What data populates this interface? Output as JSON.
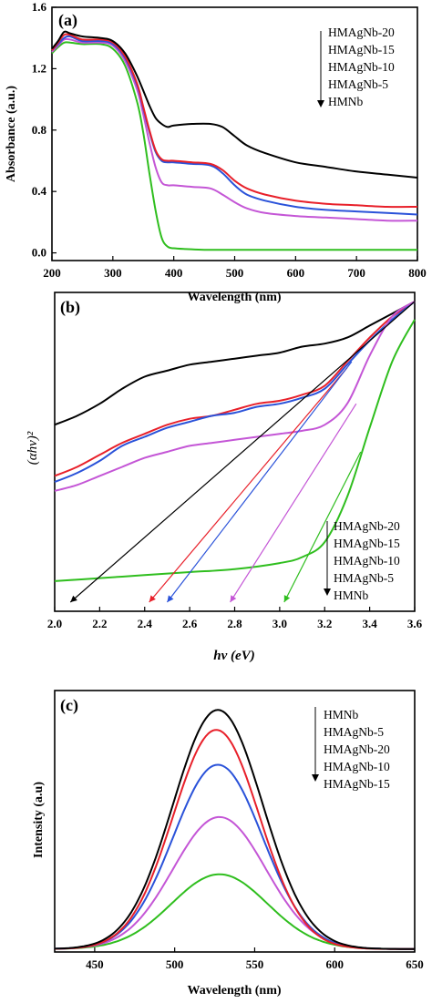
{
  "colors": {
    "HMAgNb-20": "#000000",
    "HMAgNb-15": "#e8202a",
    "HMAgNb-10": "#2a52d9",
    "HMAgNb-5": "#c456d6",
    "HMNb": "#2fbe1e"
  },
  "chart_data": [
    {
      "panel": "(a)",
      "type": "line",
      "xlabel": "Wavelength (nm)",
      "ylabel": "Absorbance (a.u.)",
      "xlim": [
        200,
        800
      ],
      "ylim": [
        -0.05,
        1.6
      ],
      "xticks": [
        200,
        300,
        400,
        500,
        600,
        700,
        800
      ],
      "yticks": [
        0.0,
        0.4,
        0.8,
        1.2,
        1.6
      ],
      "legend": [
        "HMAgNb-20",
        "HMAgNb-15",
        "HMAgNb-10",
        "HMAgNb-5",
        "HMNb"
      ],
      "series": [
        {
          "name": "HMAgNb-20",
          "x": [
            200,
            210,
            220,
            230,
            250,
            280,
            300,
            320,
            340,
            360,
            370,
            380,
            390,
            400,
            430,
            460,
            480,
            500,
            520,
            550,
            600,
            650,
            700,
            750,
            800
          ],
          "y": [
            1.33,
            1.38,
            1.44,
            1.43,
            1.41,
            1.4,
            1.38,
            1.3,
            1.15,
            0.96,
            0.88,
            0.84,
            0.82,
            0.83,
            0.84,
            0.84,
            0.82,
            0.76,
            0.7,
            0.65,
            0.59,
            0.56,
            0.53,
            0.51,
            0.49
          ]
        },
        {
          "name": "HMAgNb-15",
          "x": [
            200,
            210,
            220,
            230,
            250,
            280,
            300,
            320,
            340,
            350,
            360,
            370,
            380,
            390,
            400,
            430,
            460,
            480,
            500,
            520,
            550,
            600,
            650,
            700,
            750,
            800
          ],
          "y": [
            1.32,
            1.37,
            1.42,
            1.42,
            1.39,
            1.39,
            1.37,
            1.28,
            1.1,
            0.95,
            0.8,
            0.67,
            0.61,
            0.6,
            0.6,
            0.59,
            0.58,
            0.54,
            0.47,
            0.42,
            0.38,
            0.34,
            0.32,
            0.31,
            0.3,
            0.3
          ]
        },
        {
          "name": "HMAgNb-10",
          "x": [
            200,
            210,
            220,
            230,
            250,
            280,
            300,
            320,
            340,
            350,
            360,
            370,
            380,
            390,
            400,
            430,
            460,
            480,
            500,
            520,
            550,
            600,
            650,
            700,
            750,
            800
          ],
          "y": [
            1.32,
            1.36,
            1.4,
            1.41,
            1.38,
            1.38,
            1.36,
            1.27,
            1.09,
            0.94,
            0.79,
            0.66,
            0.6,
            0.59,
            0.59,
            0.58,
            0.57,
            0.52,
            0.44,
            0.38,
            0.34,
            0.3,
            0.28,
            0.27,
            0.26,
            0.25
          ]
        },
        {
          "name": "HMAgNb-5",
          "x": [
            200,
            210,
            220,
            230,
            250,
            280,
            300,
            320,
            340,
            350,
            360,
            370,
            380,
            390,
            400,
            430,
            460,
            480,
            500,
            520,
            550,
            600,
            650,
            700,
            750,
            800
          ],
          "y": [
            1.31,
            1.35,
            1.39,
            1.39,
            1.37,
            1.37,
            1.35,
            1.25,
            1.06,
            0.9,
            0.72,
            0.56,
            0.46,
            0.44,
            0.44,
            0.43,
            0.42,
            0.38,
            0.33,
            0.29,
            0.26,
            0.24,
            0.23,
            0.22,
            0.21,
            0.21
          ]
        },
        {
          "name": "HMNb",
          "x": [
            200,
            210,
            220,
            230,
            250,
            280,
            300,
            320,
            340,
            350,
            360,
            370,
            380,
            390,
            400,
            420,
            450,
            500,
            600,
            700,
            800
          ],
          "y": [
            1.3,
            1.34,
            1.37,
            1.37,
            1.36,
            1.36,
            1.33,
            1.22,
            0.98,
            0.78,
            0.52,
            0.28,
            0.1,
            0.04,
            0.03,
            0.025,
            0.02,
            0.02,
            0.02,
            0.02,
            0.02
          ]
        }
      ]
    },
    {
      "panel": "(b)",
      "type": "line",
      "xlabel": "hν (eV)",
      "ylabel": "(αhν)²",
      "xlim": [
        2.0,
        3.6
      ],
      "ylim": [
        0,
        1
      ],
      "xticks": [
        "2.0",
        "2.2",
        "2.4",
        "2.6",
        "2.8",
        "3.0",
        "3.2",
        "3.4",
        "3.6"
      ],
      "legend": [
        "HMAgNb-20",
        "HMAgNb-15",
        "HMAgNb-10",
        "HMAgNb-5",
        "HMNb"
      ],
      "series": [
        {
          "name": "HMAgNb-20",
          "x": [
            2.0,
            2.1,
            2.2,
            2.3,
            2.4,
            2.5,
            2.6,
            2.7,
            2.8,
            2.9,
            3.0,
            3.1,
            3.2,
            3.3,
            3.4,
            3.5,
            3.6
          ],
          "y": [
            0.59,
            0.62,
            0.66,
            0.71,
            0.75,
            0.77,
            0.79,
            0.8,
            0.81,
            0.82,
            0.83,
            0.85,
            0.86,
            0.88,
            0.92,
            0.96,
            1.0
          ]
        },
        {
          "name": "HMAgNb-15",
          "x": [
            2.0,
            2.1,
            2.2,
            2.3,
            2.4,
            2.5,
            2.6,
            2.7,
            2.8,
            2.9,
            3.0,
            3.1,
            3.2,
            3.3,
            3.4,
            3.5,
            3.6
          ],
          "y": [
            0.42,
            0.45,
            0.49,
            0.53,
            0.56,
            0.59,
            0.61,
            0.62,
            0.64,
            0.66,
            0.67,
            0.69,
            0.72,
            0.8,
            0.88,
            0.95,
            1.0
          ]
        },
        {
          "name": "HMAgNb-10",
          "x": [
            2.0,
            2.1,
            2.2,
            2.3,
            2.4,
            2.5,
            2.6,
            2.7,
            2.8,
            2.9,
            3.0,
            3.1,
            3.2,
            3.3,
            3.4,
            3.5,
            3.6
          ],
          "y": [
            0.4,
            0.43,
            0.47,
            0.52,
            0.55,
            0.58,
            0.6,
            0.62,
            0.63,
            0.65,
            0.66,
            0.68,
            0.71,
            0.79,
            0.87,
            0.94,
            1.0
          ]
        },
        {
          "name": "HMAgNb-5",
          "x": [
            2.0,
            2.1,
            2.2,
            2.3,
            2.4,
            2.5,
            2.6,
            2.7,
            2.8,
            2.9,
            3.0,
            3.1,
            3.2,
            3.3,
            3.4,
            3.5,
            3.6
          ],
          "y": [
            0.37,
            0.39,
            0.42,
            0.45,
            0.48,
            0.5,
            0.52,
            0.53,
            0.54,
            0.55,
            0.56,
            0.57,
            0.59,
            0.66,
            0.82,
            0.95,
            1.0
          ]
        },
        {
          "name": "HMNb",
          "x": [
            2.0,
            2.2,
            2.4,
            2.6,
            2.8,
            3.0,
            3.1,
            3.2,
            3.3,
            3.4,
            3.5,
            3.6
          ],
          "y": [
            0.07,
            0.08,
            0.09,
            0.1,
            0.11,
            0.13,
            0.15,
            0.2,
            0.35,
            0.58,
            0.8,
            0.94
          ]
        }
      ],
      "tangents": [
        {
          "name": "HMAgNb-20",
          "from": [
            2.07,
            0.0
          ],
          "to": [
            3.6,
            1.0
          ]
        },
        {
          "name": "HMAgNb-15",
          "from": [
            2.42,
            0.0
          ],
          "to": [
            3.3,
            0.78
          ]
        },
        {
          "name": "HMAgNb-10",
          "from": [
            2.5,
            0.0
          ],
          "to": [
            3.32,
            0.8
          ]
        },
        {
          "name": "HMAgNb-5",
          "from": [
            2.78,
            0.0
          ],
          "to": [
            3.34,
            0.66
          ]
        },
        {
          "name": "HMNb",
          "from": [
            3.02,
            0.0
          ],
          "to": [
            3.36,
            0.5
          ]
        }
      ]
    },
    {
      "panel": "(c)",
      "type": "line",
      "xlabel": "Wavelength (nm)",
      "ylabel": "Intensity (a.u)",
      "xlim": [
        425,
        650
      ],
      "ylim": [
        0,
        1
      ],
      "xticks": [
        450,
        500,
        550,
        600,
        650
      ],
      "legend": [
        "HMNb",
        "HMAgNb-5",
        "HMAgNb-20",
        "HMAgNb-10",
        "HMAgNb-15"
      ],
      "series": [
        {
          "name": "HMAgNb-20",
          "peak": 527,
          "height": 0.96,
          "sigma": 28
        },
        {
          "name": "HMAgNb-15",
          "peak": 526,
          "height": 0.88,
          "sigma": 27
        },
        {
          "name": "HMAgNb-10",
          "peak": 527,
          "height": 0.74,
          "sigma": 28
        },
        {
          "name": "HMAgNb-5",
          "peak": 528,
          "height": 0.53,
          "sigma": 29
        },
        {
          "name": "HMNb",
          "peak": 528,
          "height": 0.3,
          "sigma": 30
        }
      ]
    }
  ]
}
